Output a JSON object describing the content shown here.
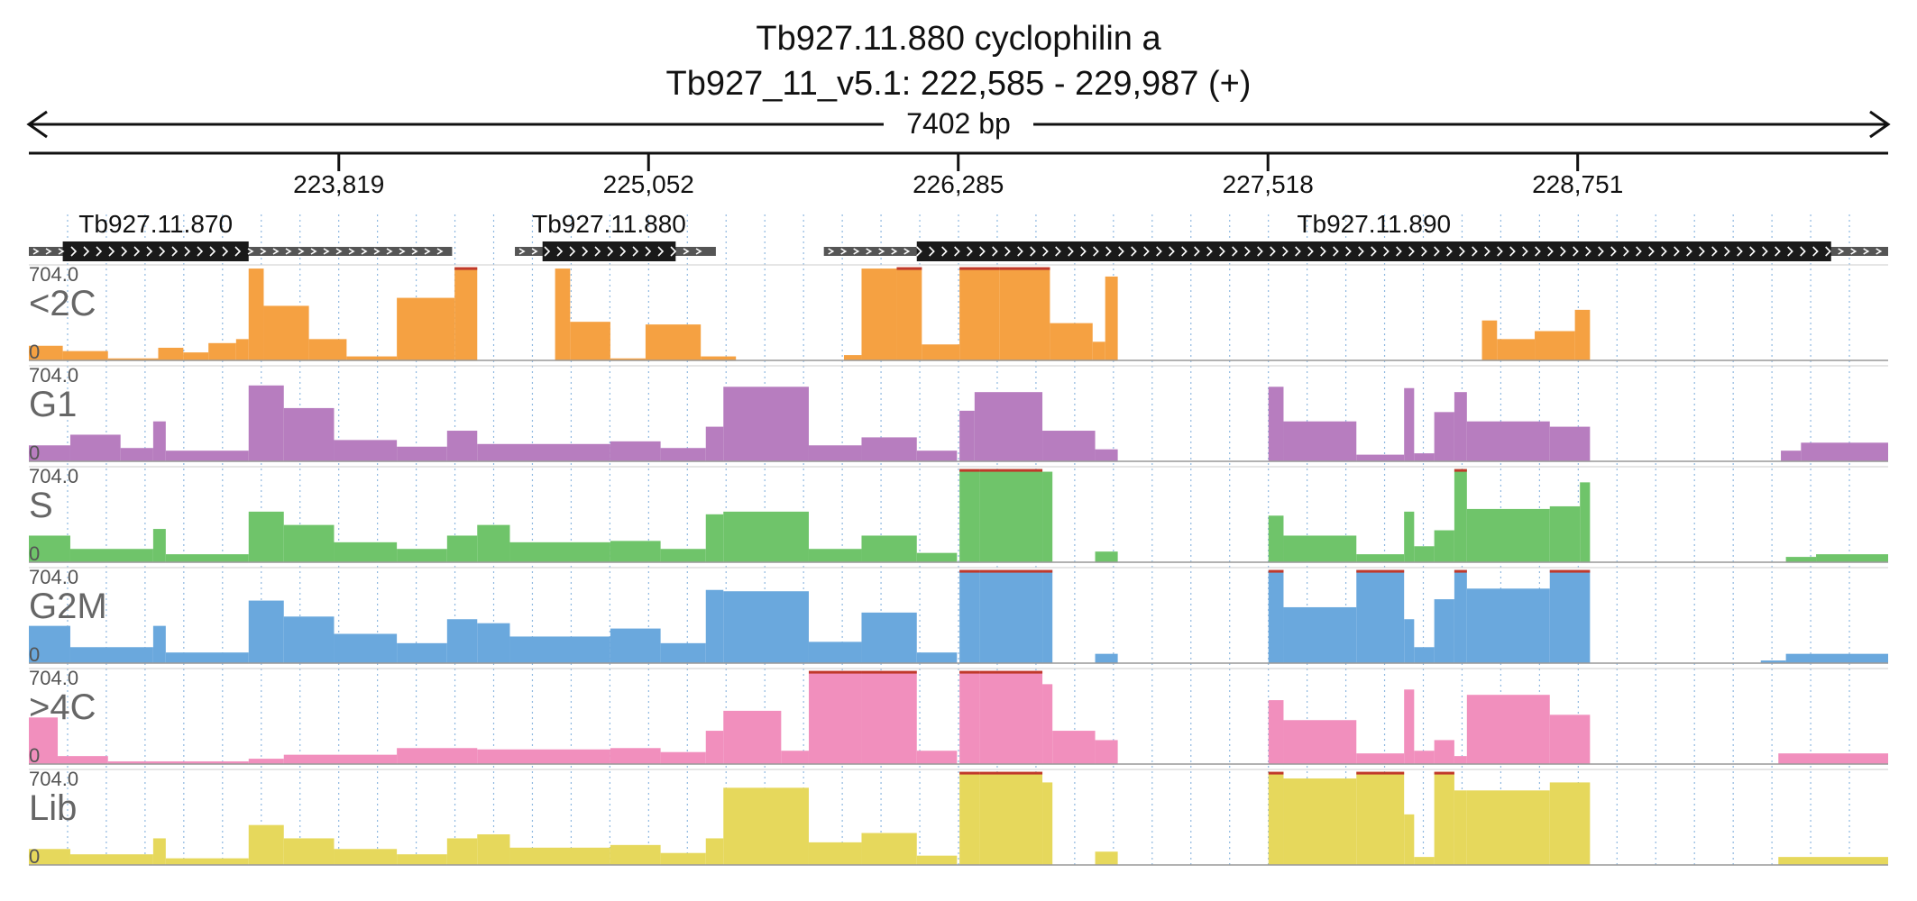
{
  "header": {
    "gene_title": "Tb927.11.880  cyclophilin a",
    "locus": "Tb927_11_v5.1: 222,585 - 229,987 (+)",
    "span_label": "7402 bp"
  },
  "chart_data": {
    "type": "area",
    "x_range": [
      222585,
      229987
    ],
    "ticks": [
      {
        "pos": 223819,
        "label": "223,819"
      },
      {
        "pos": 225052,
        "label": "225,052"
      },
      {
        "pos": 226285,
        "label": "226,285"
      },
      {
        "pos": 227518,
        "label": "227,518"
      },
      {
        "pos": 228751,
        "label": "228,751"
      }
    ],
    "genes": [
      {
        "name": "Tb927.11.870",
        "start": 222585,
        "end": 224270,
        "cds_start": 222720,
        "cds_end": 223460
      },
      {
        "name": "Tb927.11.880",
        "start": 224520,
        "end": 225320,
        "cds_start": 224630,
        "cds_end": 225160
      },
      {
        "name": "Tb927.11.890",
        "start": 225750,
        "end": 229987,
        "cds_start": 226120,
        "cds_end": 229760
      }
    ],
    "ylim": [
      0,
      704.0
    ],
    "ymax_label": "704.0",
    "ymin_label": "0",
    "tracks": [
      {
        "name": "<2C",
        "color": "#f5a142",
        "segments": [
          [
            222585,
            222720,
            110
          ],
          [
            222720,
            222900,
            70
          ],
          [
            222900,
            223100,
            15
          ],
          [
            223100,
            223200,
            95
          ],
          [
            223200,
            223300,
            60
          ],
          [
            223300,
            223410,
            130
          ],
          [
            223410,
            223460,
            160
          ],
          [
            223460,
            223520,
            690
          ],
          [
            223520,
            223700,
            410
          ],
          [
            223700,
            223850,
            160
          ],
          [
            223850,
            224050,
            30
          ],
          [
            224050,
            224280,
            470
          ],
          [
            224280,
            224370,
            700
          ],
          [
            224680,
            224740,
            690
          ],
          [
            224740,
            224900,
            290
          ],
          [
            224900,
            225040,
            15
          ],
          [
            225040,
            225260,
            270
          ],
          [
            225260,
            225400,
            30
          ],
          [
            225830,
            225900,
            40
          ],
          [
            225900,
            226040,
            690
          ],
          [
            226040,
            226140,
            700
          ],
          [
            226140,
            226290,
            120
          ],
          [
            226290,
            226450,
            700
          ],
          [
            226450,
            226650,
            700
          ],
          [
            226650,
            226820,
            280
          ],
          [
            226820,
            226870,
            140
          ],
          [
            226870,
            226920,
            630
          ],
          [
            228370,
            228430,
            300
          ],
          [
            228430,
            228580,
            160
          ],
          [
            228580,
            228740,
            220
          ],
          [
            228740,
            228800,
            380
          ]
        ]
      },
      {
        "name": "G1",
        "color": "#b77dbf",
        "segments": [
          [
            222585,
            222750,
            120
          ],
          [
            222750,
            222950,
            200
          ],
          [
            222950,
            223080,
            100
          ],
          [
            223080,
            223130,
            300
          ],
          [
            223130,
            223460,
            80
          ],
          [
            223460,
            223600,
            570
          ],
          [
            223600,
            223800,
            400
          ],
          [
            223800,
            224050,
            160
          ],
          [
            224050,
            224250,
            110
          ],
          [
            224250,
            224370,
            230
          ],
          [
            224370,
            224900,
            130
          ],
          [
            224900,
            225100,
            150
          ],
          [
            225100,
            225280,
            100
          ],
          [
            225280,
            225350,
            260
          ],
          [
            225350,
            225690,
            560
          ],
          [
            225690,
            225900,
            120
          ],
          [
            225900,
            226120,
            180
          ],
          [
            226120,
            226280,
            80
          ],
          [
            226290,
            226350,
            380
          ],
          [
            226350,
            226620,
            520
          ],
          [
            226620,
            226830,
            230
          ],
          [
            226830,
            226920,
            90
          ],
          [
            227520,
            227580,
            560
          ],
          [
            227580,
            227870,
            300
          ],
          [
            227870,
            228060,
            50
          ],
          [
            228060,
            228100,
            550
          ],
          [
            228100,
            228180,
            60
          ],
          [
            228180,
            228260,
            370
          ],
          [
            228260,
            228310,
            520
          ],
          [
            228310,
            228640,
            300
          ],
          [
            228640,
            228800,
            260
          ],
          [
            229560,
            229640,
            80
          ],
          [
            229640,
            229987,
            140
          ]
        ]
      },
      {
        "name": "S",
        "color": "#6fc46a",
        "segments": [
          [
            222585,
            222750,
            200
          ],
          [
            222750,
            223080,
            100
          ],
          [
            223080,
            223130,
            250
          ],
          [
            223130,
            223460,
            60
          ],
          [
            223460,
            223600,
            380
          ],
          [
            223600,
            223800,
            280
          ],
          [
            223800,
            224050,
            150
          ],
          [
            224050,
            224250,
            100
          ],
          [
            224250,
            224370,
            200
          ],
          [
            224370,
            224500,
            280
          ],
          [
            224500,
            224900,
            150
          ],
          [
            224900,
            225100,
            160
          ],
          [
            225100,
            225280,
            100
          ],
          [
            225280,
            225350,
            360
          ],
          [
            225350,
            225690,
            380
          ],
          [
            225690,
            225900,
            100
          ],
          [
            225900,
            226120,
            200
          ],
          [
            226120,
            226280,
            70
          ],
          [
            226290,
            226370,
            700
          ],
          [
            226370,
            226620,
            700
          ],
          [
            226620,
            226660,
            680
          ],
          [
            226830,
            226920,
            80
          ],
          [
            227520,
            227580,
            350
          ],
          [
            227580,
            227870,
            200
          ],
          [
            227870,
            228060,
            60
          ],
          [
            228060,
            228100,
            380
          ],
          [
            228100,
            228180,
            120
          ],
          [
            228180,
            228260,
            240
          ],
          [
            228260,
            228310,
            700
          ],
          [
            228310,
            228640,
            400
          ],
          [
            228640,
            228760,
            420
          ],
          [
            228760,
            228800,
            600
          ],
          [
            229580,
            229700,
            40
          ],
          [
            229700,
            229987,
            60
          ]
        ]
      },
      {
        "name": "G2M",
        "color": "#6aa8dd",
        "segments": [
          [
            222585,
            222750,
            280
          ],
          [
            222750,
            223080,
            120
          ],
          [
            223080,
            223130,
            280
          ],
          [
            223130,
            223460,
            80
          ],
          [
            223460,
            223600,
            470
          ],
          [
            223600,
            223800,
            350
          ],
          [
            223800,
            224050,
            220
          ],
          [
            224050,
            224250,
            150
          ],
          [
            224250,
            224370,
            330
          ],
          [
            224370,
            224500,
            300
          ],
          [
            224500,
            224900,
            200
          ],
          [
            224900,
            225100,
            260
          ],
          [
            225100,
            225280,
            150
          ],
          [
            225280,
            225350,
            550
          ],
          [
            225350,
            225690,
            540
          ],
          [
            225690,
            225900,
            160
          ],
          [
            225900,
            226120,
            380
          ],
          [
            226120,
            226280,
            80
          ],
          [
            226290,
            226370,
            700
          ],
          [
            226370,
            226620,
            700
          ],
          [
            226620,
            226660,
            700
          ],
          [
            226830,
            226920,
            70
          ],
          [
            227520,
            227580,
            700
          ],
          [
            227580,
            227870,
            420
          ],
          [
            227870,
            228060,
            700
          ],
          [
            228060,
            228100,
            330
          ],
          [
            228100,
            228180,
            120
          ],
          [
            228180,
            228260,
            480
          ],
          [
            228260,
            228310,
            700
          ],
          [
            228310,
            228640,
            560
          ],
          [
            228640,
            228800,
            700
          ],
          [
            229480,
            229580,
            20
          ],
          [
            229580,
            229987,
            70
          ]
        ]
      },
      {
        "name": ">4C",
        "color": "#f18fbd",
        "segments": [
          [
            222585,
            222700,
            350
          ],
          [
            222700,
            222900,
            60
          ],
          [
            222900,
            223460,
            20
          ],
          [
            223460,
            223600,
            40
          ],
          [
            223600,
            224050,
            70
          ],
          [
            224050,
            224370,
            120
          ],
          [
            224370,
            224900,
            110
          ],
          [
            224900,
            225100,
            120
          ],
          [
            225100,
            225280,
            90
          ],
          [
            225280,
            225350,
            250
          ],
          [
            225350,
            225580,
            400
          ],
          [
            225580,
            225690,
            100
          ],
          [
            225690,
            225900,
            700
          ],
          [
            225900,
            226120,
            700
          ],
          [
            226120,
            226280,
            100
          ],
          [
            226290,
            226370,
            700
          ],
          [
            226370,
            226620,
            700
          ],
          [
            226620,
            226660,
            600
          ],
          [
            226660,
            226830,
            250
          ],
          [
            226830,
            226920,
            180
          ],
          [
            227520,
            227580,
            480
          ],
          [
            227580,
            227870,
            330
          ],
          [
            227870,
            228060,
            80
          ],
          [
            228060,
            228100,
            560
          ],
          [
            228100,
            228180,
            100
          ],
          [
            228180,
            228260,
            180
          ],
          [
            228260,
            228310,
            60
          ],
          [
            228310,
            228640,
            520
          ],
          [
            228640,
            228800,
            370
          ],
          [
            229550,
            229987,
            80
          ]
        ]
      },
      {
        "name": "Lib",
        "color": "#e6d85c",
        "segments": [
          [
            222585,
            222750,
            120
          ],
          [
            222750,
            223080,
            80
          ],
          [
            223080,
            223130,
            200
          ],
          [
            223130,
            223460,
            50
          ],
          [
            223460,
            223600,
            300
          ],
          [
            223600,
            223800,
            200
          ],
          [
            223800,
            224050,
            120
          ],
          [
            224050,
            224250,
            80
          ],
          [
            224250,
            224370,
            200
          ],
          [
            224370,
            224500,
            230
          ],
          [
            224500,
            224900,
            130
          ],
          [
            224900,
            225100,
            150
          ],
          [
            225100,
            225280,
            90
          ],
          [
            225280,
            225350,
            200
          ],
          [
            225350,
            225690,
            580
          ],
          [
            225690,
            225900,
            170
          ],
          [
            225900,
            226120,
            240
          ],
          [
            226120,
            226280,
            70
          ],
          [
            226290,
            226370,
            700
          ],
          [
            226370,
            226620,
            700
          ],
          [
            226620,
            226660,
            620
          ],
          [
            226830,
            226920,
            100
          ],
          [
            227520,
            227580,
            700
          ],
          [
            227580,
            227870,
            650
          ],
          [
            227870,
            228060,
            700
          ],
          [
            228060,
            228100,
            380
          ],
          [
            228100,
            228180,
            60
          ],
          [
            228180,
            228260,
            700
          ],
          [
            228260,
            228310,
            560
          ],
          [
            228310,
            228640,
            560
          ],
          [
            228640,
            228800,
            620
          ],
          [
            229550,
            229987,
            60
          ]
        ]
      }
    ]
  }
}
